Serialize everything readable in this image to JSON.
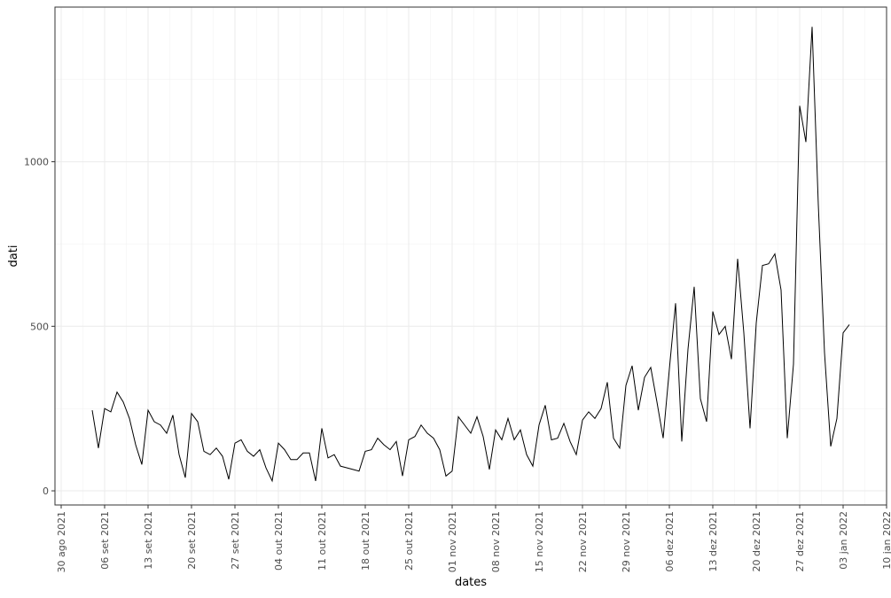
{
  "chart_data": {
    "type": "line",
    "xlabel": "dates",
    "ylabel": "dati",
    "x": [
      "2021-09-04",
      "2021-09-05",
      "2021-09-06",
      "2021-09-07",
      "2021-09-08",
      "2021-09-09",
      "2021-09-10",
      "2021-09-11",
      "2021-09-12",
      "2021-09-13",
      "2021-09-14",
      "2021-09-15",
      "2021-09-16",
      "2021-09-17",
      "2021-09-18",
      "2021-09-19",
      "2021-09-20",
      "2021-09-21",
      "2021-09-22",
      "2021-09-23",
      "2021-09-24",
      "2021-09-25",
      "2021-09-26",
      "2021-09-27",
      "2021-09-28",
      "2021-09-29",
      "2021-09-30",
      "2021-10-01",
      "2021-10-02",
      "2021-10-03",
      "2021-10-04",
      "2021-10-05",
      "2021-10-06",
      "2021-10-07",
      "2021-10-08",
      "2021-10-09",
      "2021-10-10",
      "2021-10-11",
      "2021-10-12",
      "2021-10-13",
      "2021-10-14",
      "2021-10-15",
      "2021-10-16",
      "2021-10-17",
      "2021-10-18",
      "2021-10-19",
      "2021-10-20",
      "2021-10-21",
      "2021-10-22",
      "2021-10-23",
      "2021-10-24",
      "2021-10-25",
      "2021-10-26",
      "2021-10-27",
      "2021-10-28",
      "2021-10-29",
      "2021-10-30",
      "2021-10-31",
      "2021-11-01",
      "2021-11-02",
      "2021-11-03",
      "2021-11-04",
      "2021-11-05",
      "2021-11-06",
      "2021-11-07",
      "2021-11-08",
      "2021-11-09",
      "2021-11-10",
      "2021-11-11",
      "2021-11-12",
      "2021-11-13",
      "2021-11-14",
      "2021-11-15",
      "2021-11-16",
      "2021-11-17",
      "2021-11-18",
      "2021-11-19",
      "2021-11-20",
      "2021-11-21",
      "2021-11-22",
      "2021-11-23",
      "2021-11-24",
      "2021-11-25",
      "2021-11-26",
      "2021-11-27",
      "2021-11-28",
      "2021-11-29",
      "2021-11-30",
      "2021-12-01",
      "2021-12-02",
      "2021-12-03",
      "2021-12-04",
      "2021-12-05",
      "2021-12-06",
      "2021-12-07",
      "2021-12-08",
      "2021-12-09",
      "2021-12-10",
      "2021-12-11",
      "2021-12-12",
      "2021-12-13",
      "2021-12-14",
      "2021-12-15",
      "2021-12-16",
      "2021-12-17",
      "2021-12-18",
      "2021-12-19",
      "2021-12-20",
      "2021-12-21",
      "2021-12-22",
      "2021-12-23",
      "2021-12-24",
      "2021-12-25",
      "2021-12-26",
      "2021-12-27",
      "2021-12-28",
      "2021-12-29",
      "2021-12-30",
      "2021-12-31",
      "2022-01-01",
      "2022-01-02",
      "2022-01-03",
      "2022-01-04"
    ],
    "values": [
      245,
      130,
      250,
      240,
      300,
      270,
      220,
      140,
      80,
      245,
      210,
      200,
      175,
      230,
      110,
      40,
      235,
      210,
      120,
      110,
      130,
      105,
      35,
      145,
      155,
      120,
      105,
      125,
      70,
      30,
      145,
      125,
      95,
      95,
      115,
      115,
      30,
      190,
      100,
      110,
      75,
      70,
      65,
      60,
      120,
      125,
      160,
      140,
      125,
      150,
      45,
      155,
      165,
      200,
      175,
      160,
      125,
      45,
      60,
      225,
      200,
      175,
      225,
      165,
      65,
      185,
      155,
      220,
      155,
      185,
      110,
      75,
      200,
      260,
      155,
      160,
      205,
      150,
      110,
      215,
      240,
      220,
      250,
      330,
      160,
      130,
      320,
      380,
      245,
      345,
      375,
      270,
      160,
      370,
      570,
      150,
      430,
      620,
      280,
      210,
      545,
      475,
      500,
      400,
      705,
      480,
      190,
      510,
      685,
      690,
      720,
      610,
      160,
      385,
      1170,
      1060,
      1410,
      870,
      420,
      135,
      220,
      480,
      505
    ],
    "color": "#000000",
    "xlim": [
      "2021-08-29",
      "2022-01-10"
    ],
    "xticks": [
      {
        "value": "2021-08-30",
        "label": "30 ago 2021"
      },
      {
        "value": "2021-09-06",
        "label": "06 set 2021"
      },
      {
        "value": "2021-09-13",
        "label": "13 set 2021"
      },
      {
        "value": "2021-09-20",
        "label": "20 set 2021"
      },
      {
        "value": "2021-09-27",
        "label": "27 set 2021"
      },
      {
        "value": "2021-10-04",
        "label": "04 out 2021"
      },
      {
        "value": "2021-10-11",
        "label": "11 out 2021"
      },
      {
        "value": "2021-10-18",
        "label": "18 out 2021"
      },
      {
        "value": "2021-10-25",
        "label": "25 out 2021"
      },
      {
        "value": "2021-11-01",
        "label": "01 nov 2021"
      },
      {
        "value": "2021-11-08",
        "label": "08 nov 2021"
      },
      {
        "value": "2021-11-15",
        "label": "15 nov 2021"
      },
      {
        "value": "2021-11-22",
        "label": "22 nov 2021"
      },
      {
        "value": "2021-11-29",
        "label": "29 nov 2021"
      },
      {
        "value": "2021-12-06",
        "label": "06 dez 2021"
      },
      {
        "value": "2021-12-13",
        "label": "13 dez 2021"
      },
      {
        "value": "2021-12-20",
        "label": "20 dez 2021"
      },
      {
        "value": "2021-12-27",
        "label": "27 dez 2021"
      },
      {
        "value": "2022-01-03",
        "label": "03 jan 2022"
      },
      {
        "value": "2022-01-10",
        "label": "10 jan 2022"
      }
    ],
    "ylim": [
      -43,
      1470
    ],
    "yticks": [
      0,
      500,
      1000
    ],
    "grid": true,
    "minor_grid": true
  }
}
